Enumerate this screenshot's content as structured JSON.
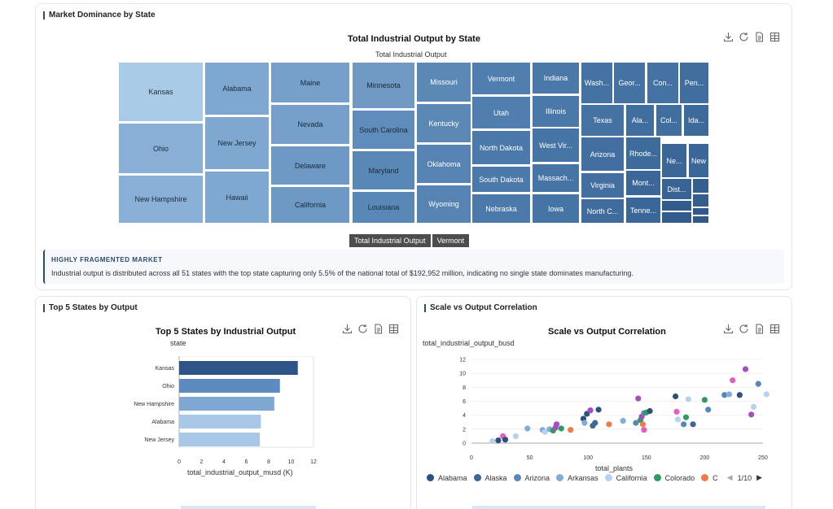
{
  "colors": {
    "accent": "#2b4a6f",
    "bar_dark": "#2e5486",
    "bar_mid": "#5c88bc",
    "bar_light": "#a9c7e6"
  },
  "toolbox_icons": [
    "download-icon",
    "refresh-icon",
    "data-view-icon",
    "grid-icon"
  ],
  "market_card": {
    "title": "Market Dominance by State",
    "chart_title": "Total Industrial Output by State",
    "series_label": "Total Industrial Output",
    "breadcrumb": [
      "Total Industrial Output",
      "Vermont"
    ],
    "insight_heading": "HIGHLY FRAGMENTED MARKET",
    "insight_text": "Industrial output is distributed across all 51 states with the top state capturing only 5.5% of the national total of $192,952 million, indicating no single state dominates manufacturing."
  },
  "treemap_tiles": [
    {
      "label": "Kansas",
      "color": "#a9cbe8"
    },
    {
      "label": "Ohio",
      "color": "#88b0d6"
    },
    {
      "label": "New Hampshire",
      "color": "#88b0d6"
    },
    {
      "label": "Alabama",
      "color": "#7fa8d1"
    },
    {
      "label": "New Jersey",
      "color": "#7fa8d1"
    },
    {
      "label": "Hawaii",
      "color": "#7fa8d1"
    },
    {
      "label": "Maine",
      "color": "#76a0ca"
    },
    {
      "label": "Nevada",
      "color": "#76a0ca"
    },
    {
      "label": "Delaware",
      "color": "#6e99c4"
    },
    {
      "label": "California",
      "color": "#6e99c4"
    },
    {
      "label": "Minnesota",
      "color": "#7099c3"
    },
    {
      "label": "South Carolina",
      "color": "#5f8cba"
    },
    {
      "label": "Maryland",
      "color": "#5a88b6"
    },
    {
      "label": "Louisiana",
      "color": "#5a88b6"
    },
    {
      "label": "Missouri",
      "color": "#5c88b5"
    },
    {
      "label": "Kentucky",
      "color": "#5c88b5"
    },
    {
      "label": "Oklahoma",
      "color": "#5683b1"
    },
    {
      "label": "Wyoming",
      "color": "#5683b1"
    },
    {
      "label": "Vermont",
      "color": "#4f7eaf"
    },
    {
      "label": "Utah",
      "color": "#4f7eaf"
    },
    {
      "label": "North Dakota",
      "color": "#4a79aa"
    },
    {
      "label": "South Dakota",
      "color": "#4a79aa"
    },
    {
      "label": "Nebraska",
      "color": "#4a79aa"
    },
    {
      "label": "Indiana",
      "color": "#4a78a9"
    },
    {
      "label": "Illinois",
      "color": "#4a78a9"
    },
    {
      "label": "West Vir...",
      "color": "#4574a5"
    },
    {
      "label": "Massach...",
      "color": "#4574a5"
    },
    {
      "label": "Iowa",
      "color": "#4574a5"
    },
    {
      "label": "Wash...",
      "color": "#4372a3"
    },
    {
      "label": "Geor...",
      "color": "#4372a3"
    },
    {
      "label": "Con...",
      "color": "#4372a3"
    },
    {
      "label": "Pen...",
      "color": "#3f6e9f"
    },
    {
      "label": "Texas",
      "color": "#4372a3"
    },
    {
      "label": "Ala...",
      "color": "#3f6e9f"
    },
    {
      "label": "Col...",
      "color": "#3f6e9f"
    },
    {
      "label": "Ida...",
      "color": "#3c6a9b"
    },
    {
      "label": "Arizona",
      "color": "#426fa0"
    },
    {
      "label": "Virginia",
      "color": "#426fa0"
    },
    {
      "label": "Rhode...",
      "color": "#3d6b9c"
    },
    {
      "label": "Ne...",
      "color": "#3a6798"
    },
    {
      "label": "New",
      "color": "#3a6798"
    },
    {
      "label": "Mont...",
      "color": "#3a6798"
    },
    {
      "label": "Dist...",
      "color": "#376495"
    },
    {
      "label": "North C...",
      "color": "#3f6c9d"
    },
    {
      "label": "Tenne...",
      "color": "#3a6798"
    },
    {
      "label": "",
      "color": "#355f8f"
    },
    {
      "label": "",
      "color": "#345e8e"
    },
    {
      "label": "",
      "color": "#335c8c"
    },
    {
      "label": "",
      "color": "#335c8c"
    },
    {
      "label": "",
      "color": "#315a8a"
    },
    {
      "label": "",
      "color": "#305988"
    }
  ],
  "top5_card": {
    "title": "Top 5 States by Output",
    "chart_title": "Top 5 States by Industrial Output",
    "y_axis_name": "state",
    "x_axis_name": "total_industrial_output_musd (K)"
  },
  "scatter_card": {
    "title": "Scale vs Output Correlation",
    "chart_title": "Scale vs Output Correlation",
    "y_axis_name": "total_industrial_output_busd",
    "x_axis_name": "total_plants",
    "legend": [
      {
        "label": "Alabama",
        "color": "#2e4f7f"
      },
      {
        "label": "Alaska",
        "color": "#3c6796"
      },
      {
        "label": "Arizona",
        "color": "#5986b8"
      },
      {
        "label": "Arkansas",
        "color": "#84acd8"
      },
      {
        "label": "California",
        "color": "#b5d2ee"
      },
      {
        "label": "Colorado",
        "color": "#2e9c62"
      },
      {
        "label": "C",
        "color": "#f27a4a"
      }
    ],
    "pager": "1/10"
  },
  "chart_data": [
    {
      "type": "bar",
      "orientation": "horizontal",
      "title": "Top 5 States by Industrial Output",
      "xlabel": "total_industrial_output_musd (K)",
      "ylabel": "state",
      "categories": [
        "Kansas",
        "Ohio",
        "New Hampshire",
        "Alabama",
        "New Jersey"
      ],
      "values": [
        10.6,
        9.0,
        8.5,
        7.3,
        7.2
      ],
      "colors": [
        "#2e5486",
        "#5e8bbf",
        "#7ea7d2",
        "#a9c7e6",
        "#a9c7e6"
      ],
      "xlim": [
        0,
        12
      ],
      "xticks": [
        0,
        2,
        4,
        6,
        8,
        10,
        12
      ]
    },
    {
      "type": "scatter",
      "title": "Scale vs Output Correlation",
      "xlabel": "total_plants",
      "ylabel": "total_industrial_output_busd",
      "xlim": [
        0,
        250
      ],
      "ylim": [
        0,
        12
      ],
      "xticks": [
        0,
        50,
        100,
        150,
        200,
        250
      ],
      "yticks": [
        0,
        2,
        4,
        6,
        8,
        10,
        12
      ],
      "points": [
        [
          18,
          0.3,
          "#b5d2ee"
        ],
        [
          23,
          0.4,
          "#2e4f7f"
        ],
        [
          27,
          1.0,
          "#e25fc0"
        ],
        [
          29,
          0.5,
          "#2e4f7f"
        ],
        [
          38,
          1.0,
          "#b5d2ee"
        ],
        [
          48,
          2.1,
          "#84acd8"
        ],
        [
          61,
          1.9,
          "#84acd8"
        ],
        [
          63,
          1.6,
          "#b5d2ee"
        ],
        [
          67,
          2.0,
          "#84acd8"
        ],
        [
          70,
          1.8,
          "#2e9c62"
        ],
        [
          72,
          2.2,
          "#a34fc0"
        ],
        [
          73,
          2.7,
          "#a34fc0"
        ],
        [
          77,
          2.1,
          "#2e9c62"
        ],
        [
          85,
          1.9,
          "#f27a4a"
        ],
        [
          96,
          3.5,
          "#2e4f7f"
        ],
        [
          97,
          2.9,
          "#84acd8"
        ],
        [
          99,
          4.2,
          "#2e4f7f"
        ],
        [
          102,
          4.7,
          "#a34fc0"
        ],
        [
          104,
          2.5,
          "#3c6796"
        ],
        [
          106,
          2.9,
          "#3c6796"
        ],
        [
          109,
          4.8,
          "#2e4f7f"
        ],
        [
          118,
          2.7,
          "#f27a4a"
        ],
        [
          130,
          3.2,
          "#84acd8"
        ],
        [
          141,
          2.9,
          "#5986b8"
        ],
        [
          143,
          6.4,
          "#a34fc0"
        ],
        [
          145,
          3.3,
          "#2e9c62"
        ],
        [
          146,
          3.8,
          "#a34fc0"
        ],
        [
          147,
          2.7,
          "#f27a4a"
        ],
        [
          148,
          1.9,
          "#e25fc0"
        ],
        [
          148,
          4.3,
          "#5986b8"
        ],
        [
          150,
          4.4,
          "#2e9c62"
        ],
        [
          153,
          4.6,
          "#2e4f7f"
        ],
        [
          175,
          6.7,
          "#2e4f7f"
        ],
        [
          176,
          4.5,
          "#e25fc0"
        ],
        [
          177,
          3.4,
          "#b5d2ee"
        ],
        [
          182,
          2.7,
          "#5986b8"
        ],
        [
          184,
          3.7,
          "#2e9c62"
        ],
        [
          186,
          6.3,
          "#b5d2ee"
        ],
        [
          190,
          2.7,
          "#3c6796"
        ],
        [
          200,
          6.2,
          "#2e9c62"
        ],
        [
          203,
          4.8,
          "#5986b8"
        ],
        [
          217,
          6.9,
          "#5986b8"
        ],
        [
          221,
          7.0,
          "#84acd8"
        ],
        [
          224,
          9.0,
          "#e25fc0"
        ],
        [
          235,
          10.6,
          "#a34fc0"
        ],
        [
          230,
          6.9,
          "#2e4f7f"
        ],
        [
          240,
          4.1,
          "#a34fc0"
        ],
        [
          242,
          5.2,
          "#b5d2ee"
        ],
        [
          246,
          8.5,
          "#5986b8"
        ],
        [
          253,
          7.0,
          "#b5d2ee"
        ]
      ]
    }
  ]
}
